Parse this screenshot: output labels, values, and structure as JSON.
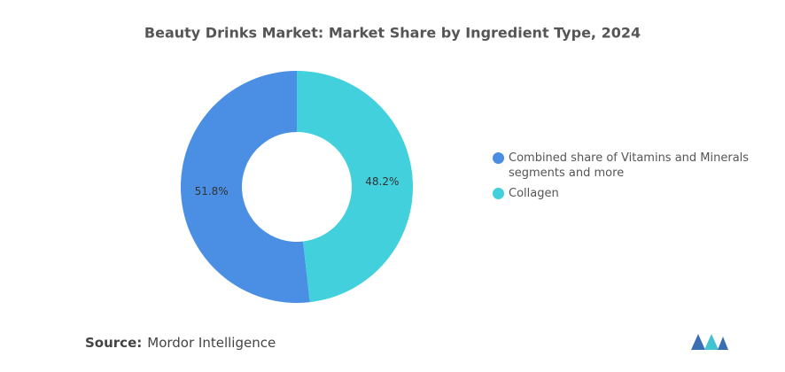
{
  "chart_data": {
    "type": "pie",
    "title": "Beauty Drinks Market: Market Share by Ingredient Type, 2024",
    "categories": [
      "Combined share of Vitamins and Minerals segments and more",
      "Collagen"
    ],
    "values": [
      51.8,
      48.2
    ],
    "value_labels": [
      "51.8%",
      "48.2%"
    ],
    "colors": [
      "#4a8fe3",
      "#41d0dc"
    ],
    "donut": true
  },
  "source": {
    "label": "Source:",
    "text": "Mordor Intelligence"
  }
}
